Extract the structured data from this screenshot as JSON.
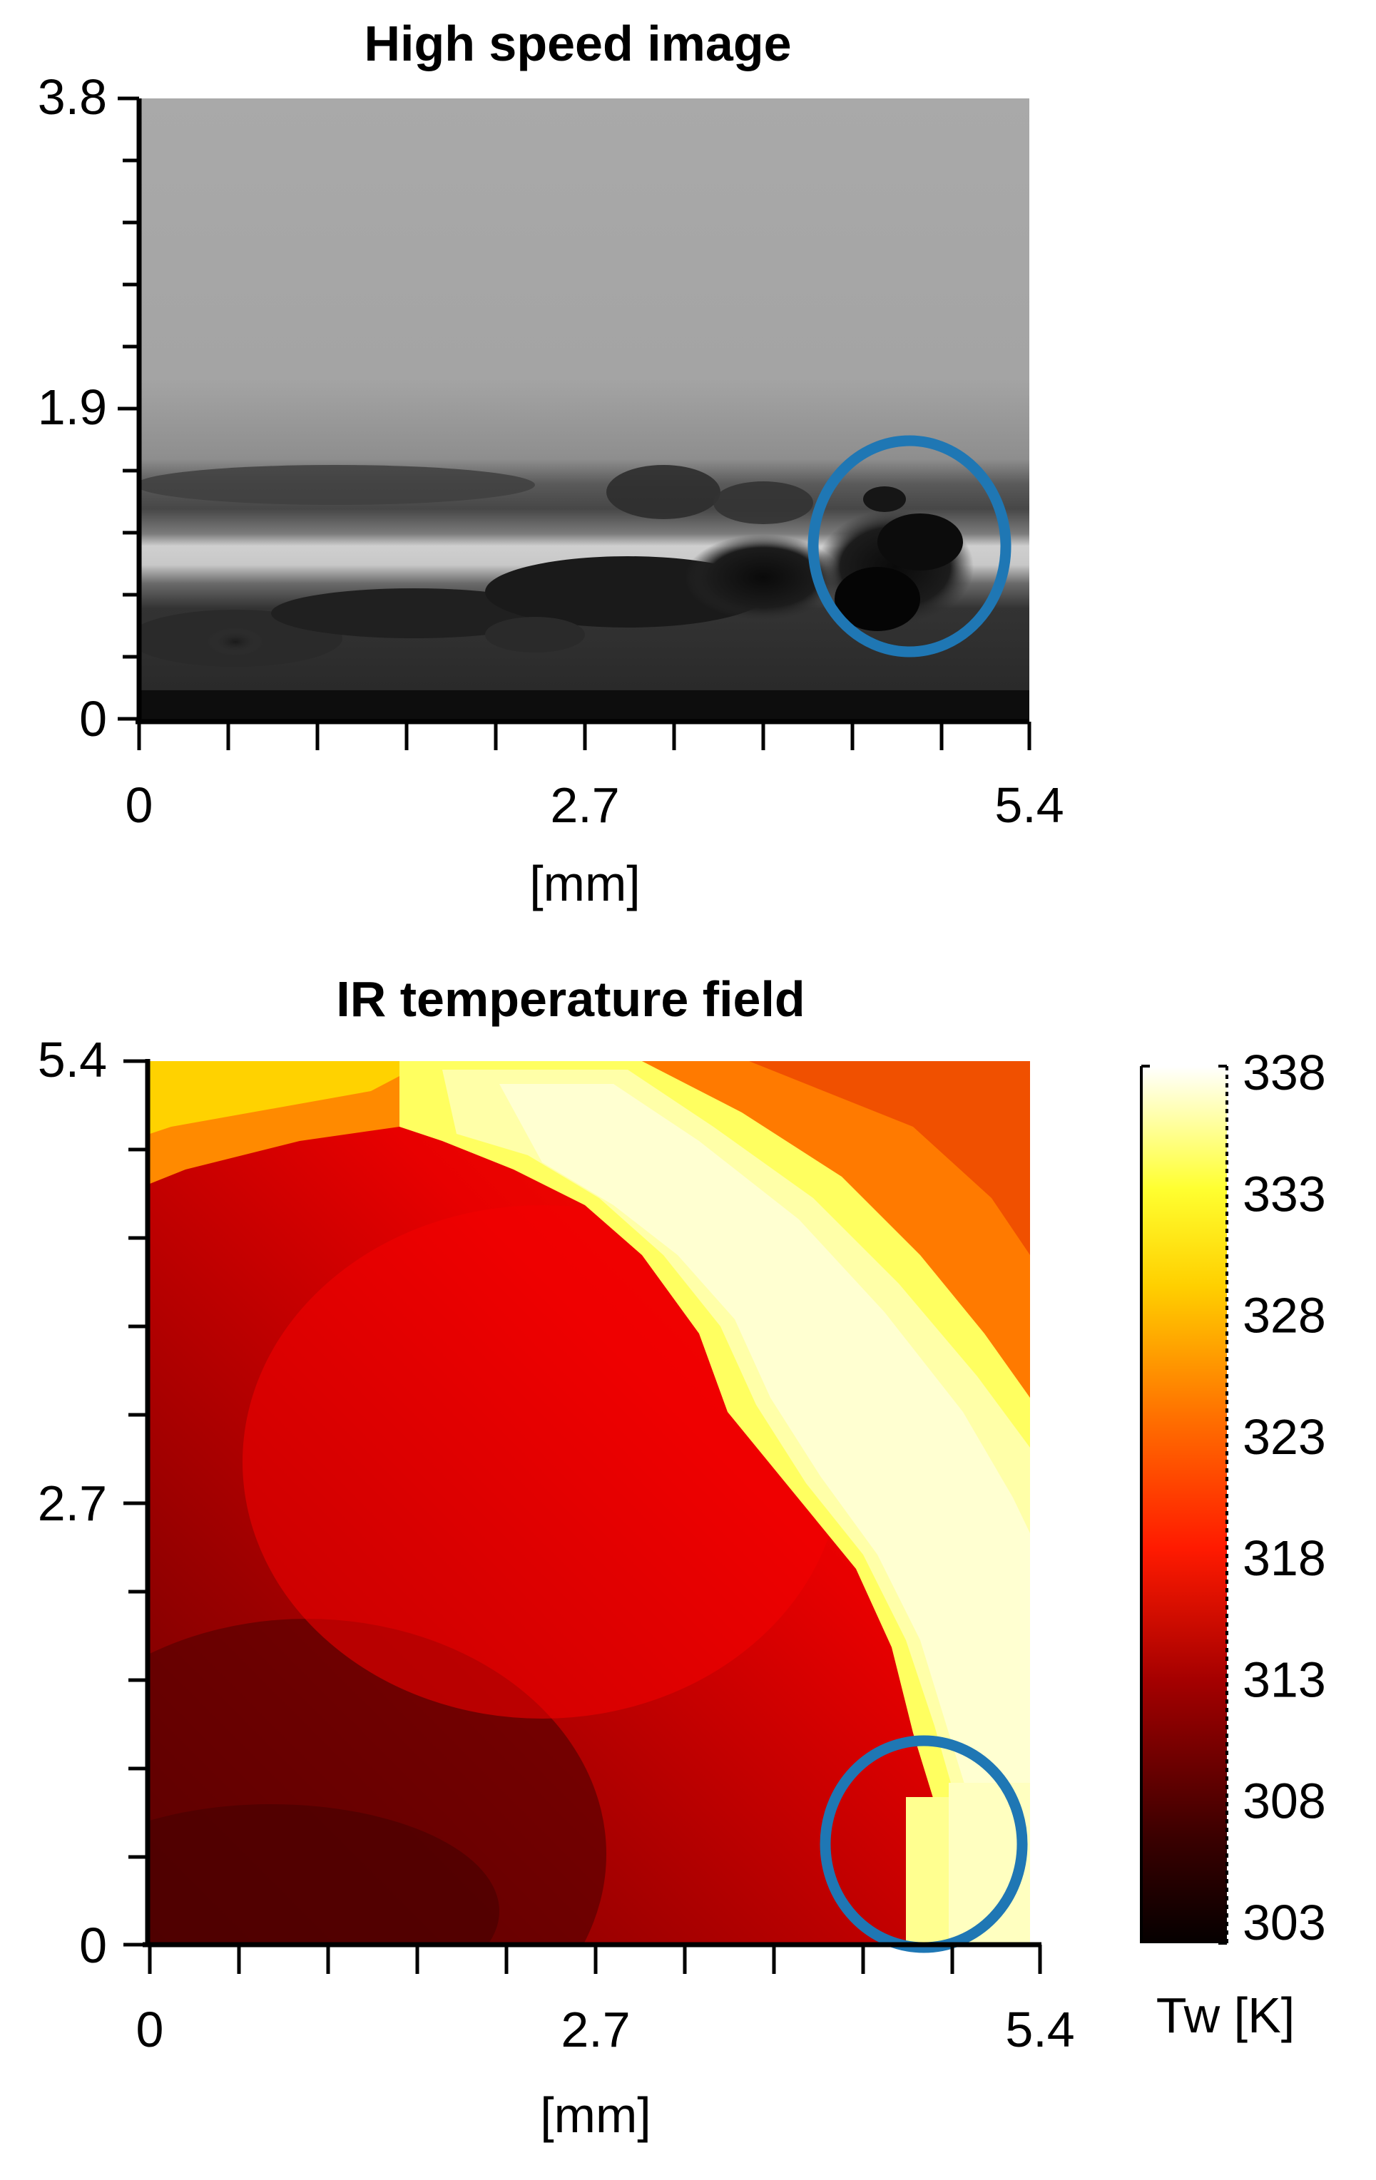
{
  "chart_data": [
    {
      "type": "image",
      "title": "High speed image",
      "xlabel": "[mm]",
      "ylabel": "",
      "xticks": [
        "0",
        "2.7",
        "5.4"
      ],
      "yticks": [
        "0",
        "1.9",
        "3.8"
      ],
      "xlim": [
        0,
        5.4
      ],
      "ylim": [
        0,
        3.8
      ],
      "colormap": "grayscale",
      "annotation": {
        "shape": "circle",
        "color": "#1f77b4",
        "center_mm": [
          4.75,
          1.08
        ]
      }
    },
    {
      "type": "heatmap",
      "title": "IR temperature field",
      "xlabel": "[mm]",
      "ylabel": "",
      "xticks": [
        "0",
        "2.7",
        "5.4"
      ],
      "yticks": [
        "0",
        "2.7",
        "5.4"
      ],
      "xlim": [
        0,
        5.4
      ],
      "ylim": [
        0,
        5.4
      ],
      "colormap": "hot",
      "colorbar": {
        "label": "Tw [K]",
        "ticks": [
          "303",
          "308",
          "313",
          "318",
          "323",
          "328",
          "333",
          "338"
        ],
        "range": [
          303,
          338
        ]
      },
      "annotation": {
        "shape": "circle",
        "color": "#1f77b4",
        "center_mm": [
          4.7,
          0.65
        ]
      }
    }
  ]
}
